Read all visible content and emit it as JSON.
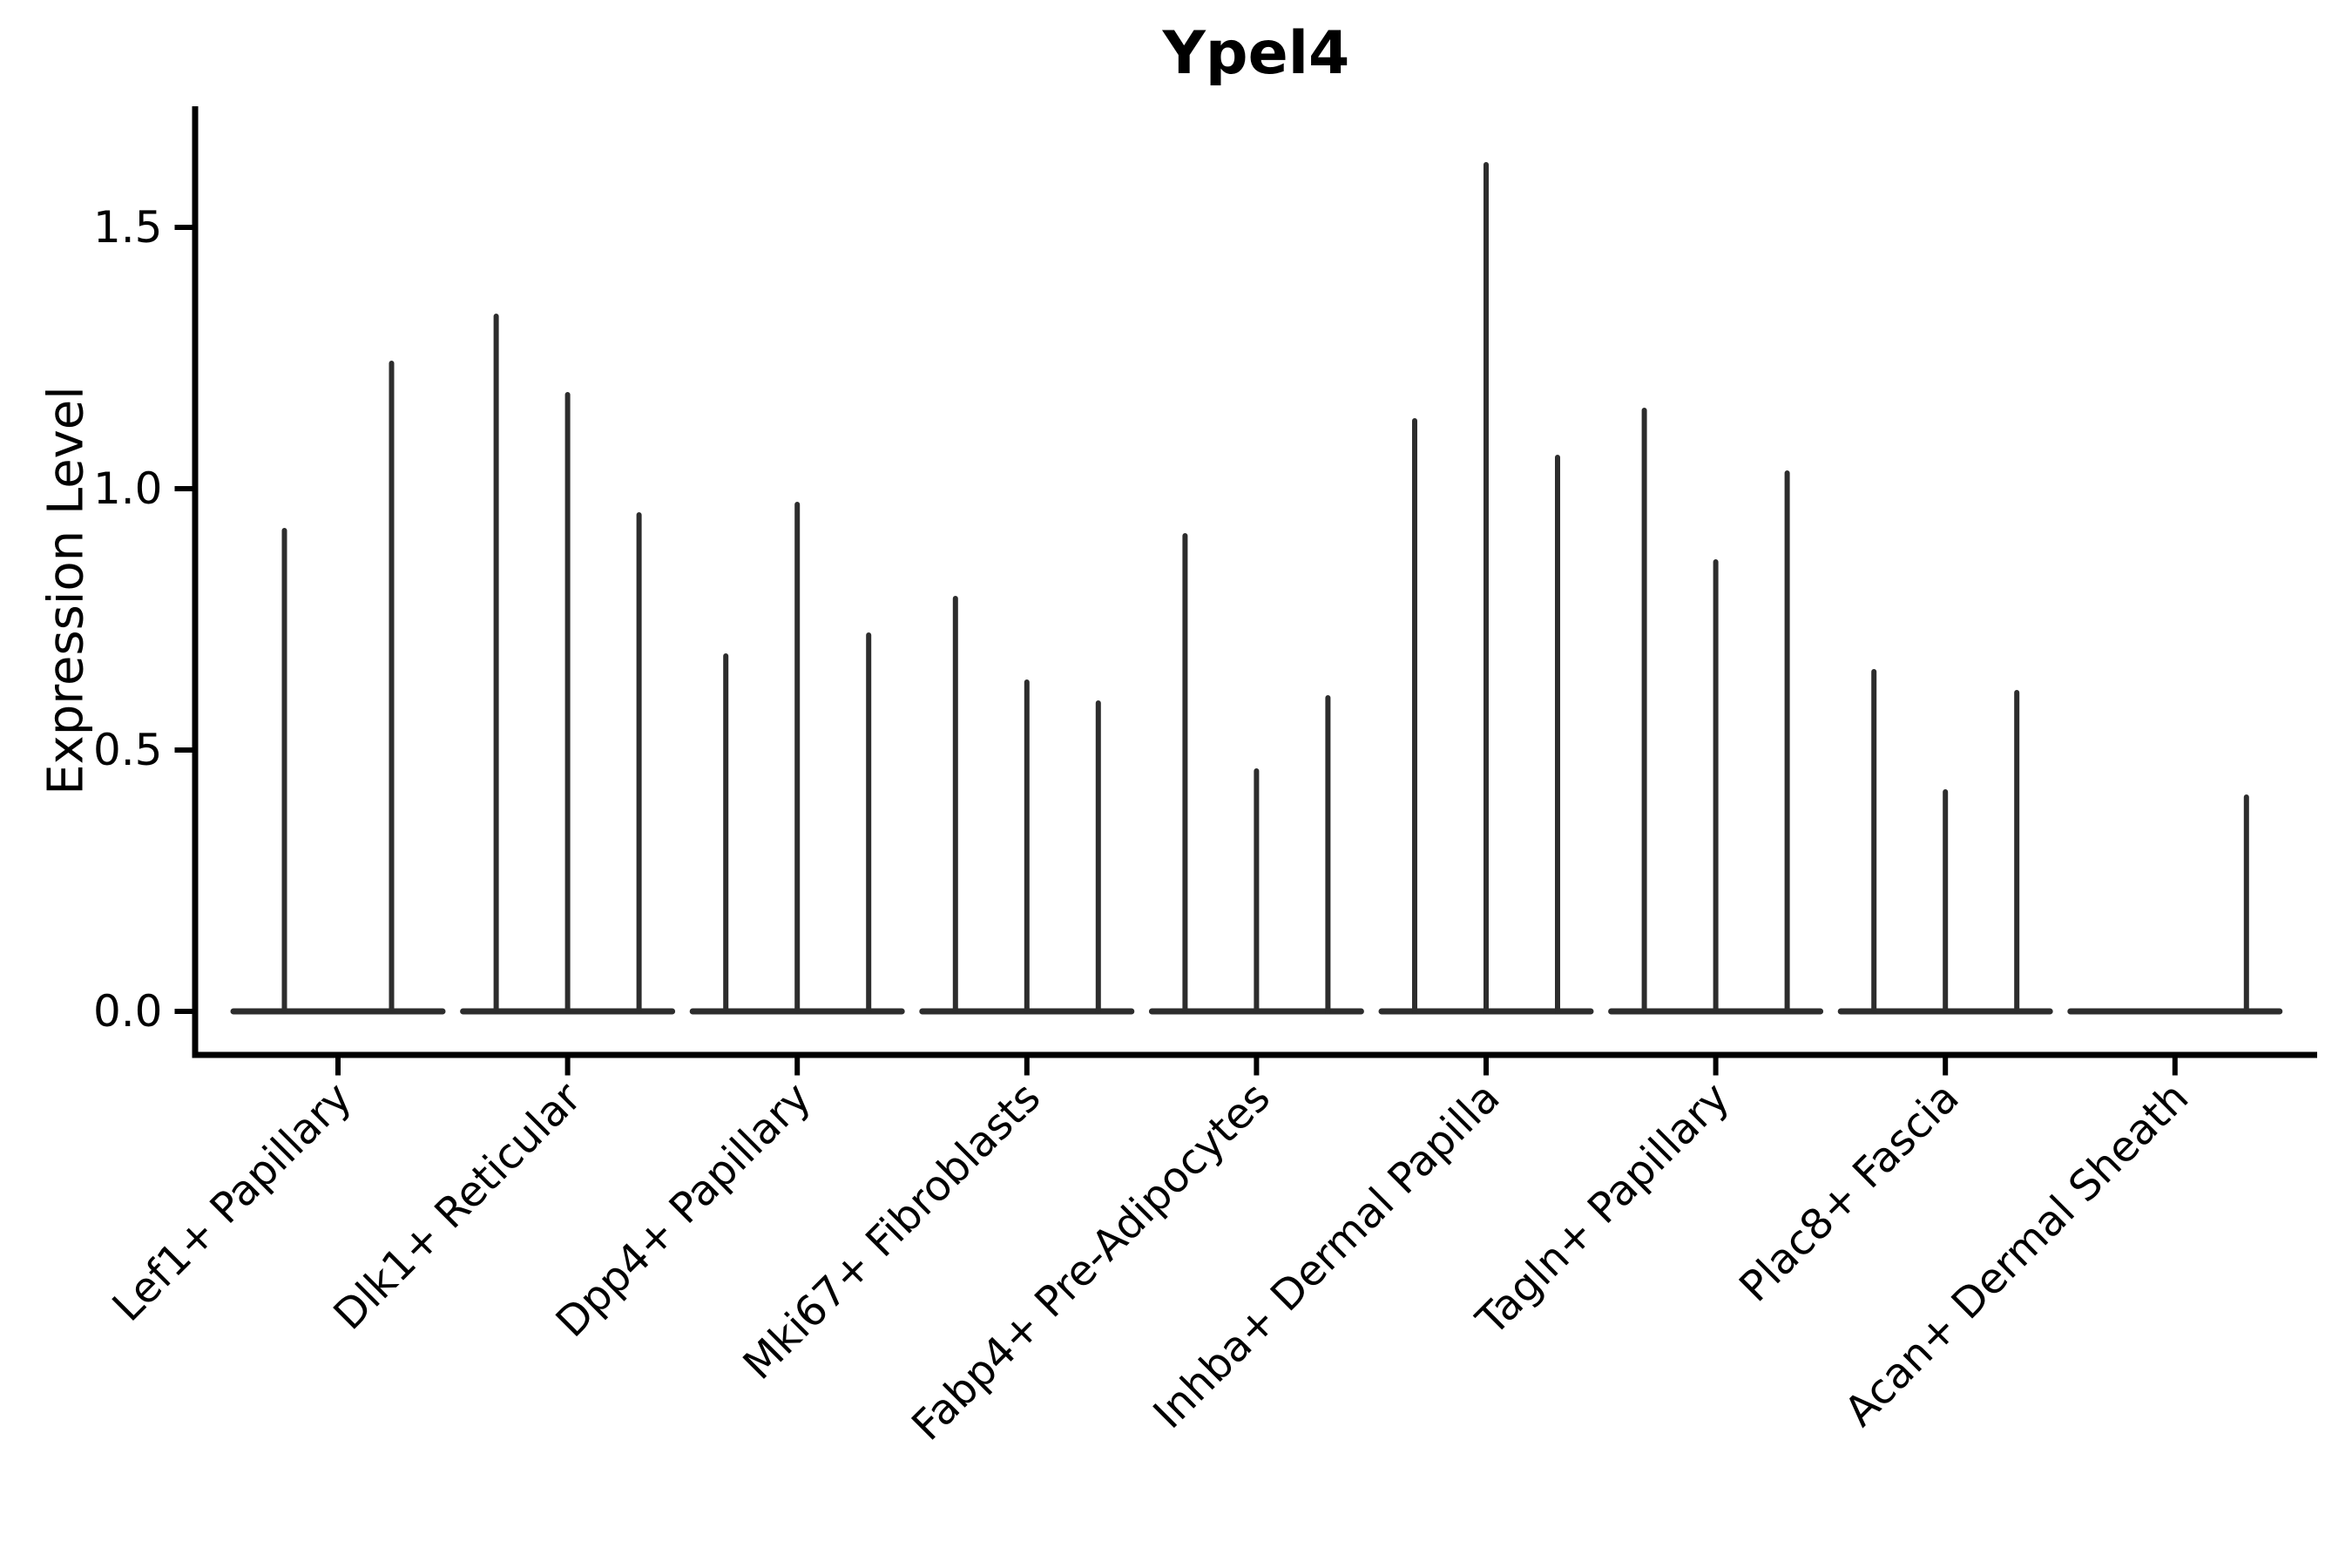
{
  "chart_data": {
    "type": "violin",
    "title": "Ypel4",
    "ylabel": "Expression Level",
    "xlabel": "",
    "ytick_values": [
      0.0,
      0.5,
      1.0,
      1.5
    ],
    "ytick_labels": [
      "0.0",
      "0.5",
      "1.0",
      "1.5"
    ],
    "ylim": [
      -0.08,
      1.75
    ],
    "grid": false,
    "legend": "none",
    "categories": [
      "Lef1+ Papillary",
      "Dlk1+ Reticular",
      "Dpp4+ Papillary",
      "Mki67+ Fibroblasts",
      "Fabp4+ Pre-Adipocytes",
      "Inhba+ Dermal Papilla",
      "Tagln+ Papillary",
      "Plac8+ Fascia",
      "Acan+ Dermal Sheath"
    ],
    "groups": [
      {
        "category": "Lef1+ Papillary",
        "violin_peaks": [
          0.92,
          1.24
        ]
      },
      {
        "category": "Dlk1+ Reticular",
        "violin_peaks": [
          1.33,
          1.18,
          0.95
        ]
      },
      {
        "category": "Dpp4+ Papillary",
        "violin_peaks": [
          0.68,
          0.97,
          0.72
        ]
      },
      {
        "category": "Mki67+ Fibroblasts",
        "violin_peaks": [
          0.79,
          0.63,
          0.59
        ]
      },
      {
        "category": "Fabp4+ Pre-Adipocytes",
        "violin_peaks": [
          0.91,
          0.46,
          0.6
        ]
      },
      {
        "category": "Inhba+ Dermal Papilla",
        "violin_peaks": [
          1.13,
          1.62,
          1.06
        ]
      },
      {
        "category": "Tagln+ Papillary",
        "violin_peaks": [
          1.15,
          0.86,
          1.03
        ]
      },
      {
        "category": "Plac8+ Fascia",
        "violin_peaks": [
          0.65,
          0.42,
          0.61
        ]
      },
      {
        "category": "Acan+ Dermal Sheath",
        "violin_peaks": [
          0.0,
          0.0,
          0.41
        ]
      }
    ],
    "colors": {
      "violin": "#2d2d2d",
      "axis": "#000000",
      "text": "#000000",
      "background": "#ffffff"
    }
  }
}
